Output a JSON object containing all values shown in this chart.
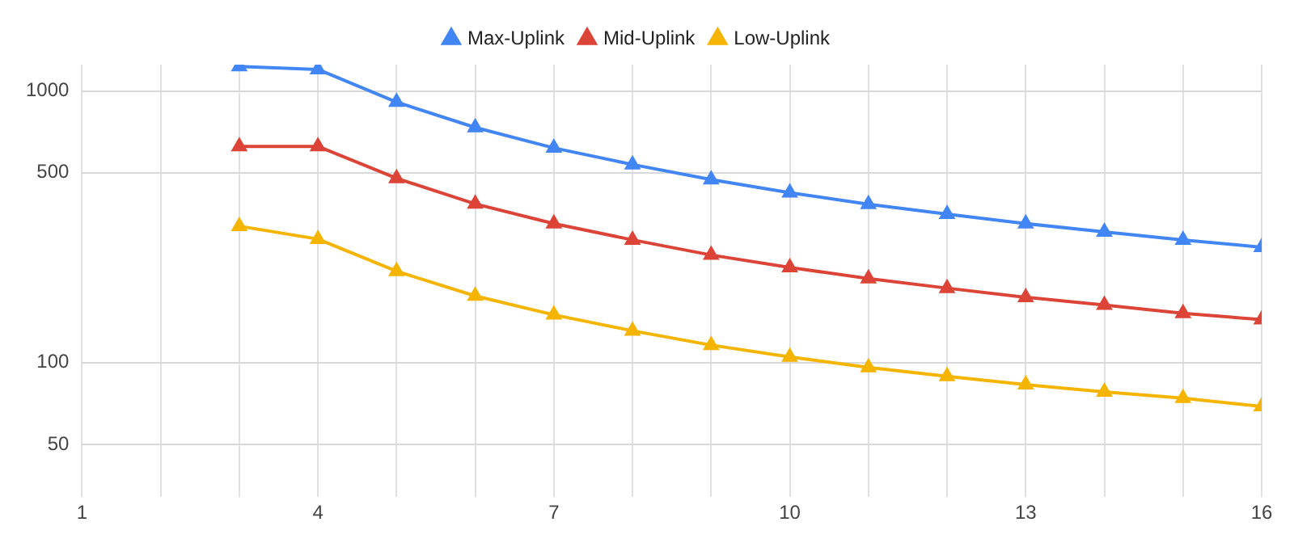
{
  "chart_data": {
    "type": "line",
    "x": [
      3,
      4,
      5,
      6,
      7,
      8,
      9,
      10,
      11,
      12,
      13,
      14,
      15,
      16
    ],
    "series": [
      {
        "name": "Max-Uplink",
        "color": "#4285f4",
        "values": [
          1230,
          1200,
          910,
          734,
          617,
          536,
          472,
          422,
          383,
          352,
          325,
          303,
          283,
          266
        ]
      },
      {
        "name": "Mid-Uplink",
        "color": "#db4437",
        "values": [
          625,
          625,
          477,
          384,
          325,
          283,
          249,
          224,
          204,
          188,
          174,
          163,
          152,
          144
        ]
      },
      {
        "name": "Low-Uplink",
        "color": "#f4b400",
        "values": [
          318,
          285,
          217,
          176,
          150,
          131,
          116,
          105,
          96,
          89,
          83,
          78,
          74,
          69
        ]
      }
    ],
    "xlim": [
      1,
      16
    ],
    "xticks": [
      1,
      {
        "value": 2,
        "label": null
      },
      {
        "value": 3,
        "label": null
      },
      4,
      {
        "value": 5,
        "label": null
      },
      {
        "value": 6,
        "label": null
      },
      7,
      {
        "value": 8,
        "label": null
      },
      {
        "value": 9,
        "label": null
      },
      10,
      {
        "value": 11,
        "label": null
      },
      {
        "value": 12,
        "label": null
      },
      13,
      {
        "value": 14,
        "label": null
      },
      {
        "value": 15,
        "label": null
      },
      16
    ],
    "ylim": [
      32,
      1250
    ],
    "yticks": [
      50,
      100,
      500,
      1000
    ],
    "log": "y",
    "grid": true,
    "legend": "top",
    "marker": "triangle",
    "line_style": "solid"
  }
}
